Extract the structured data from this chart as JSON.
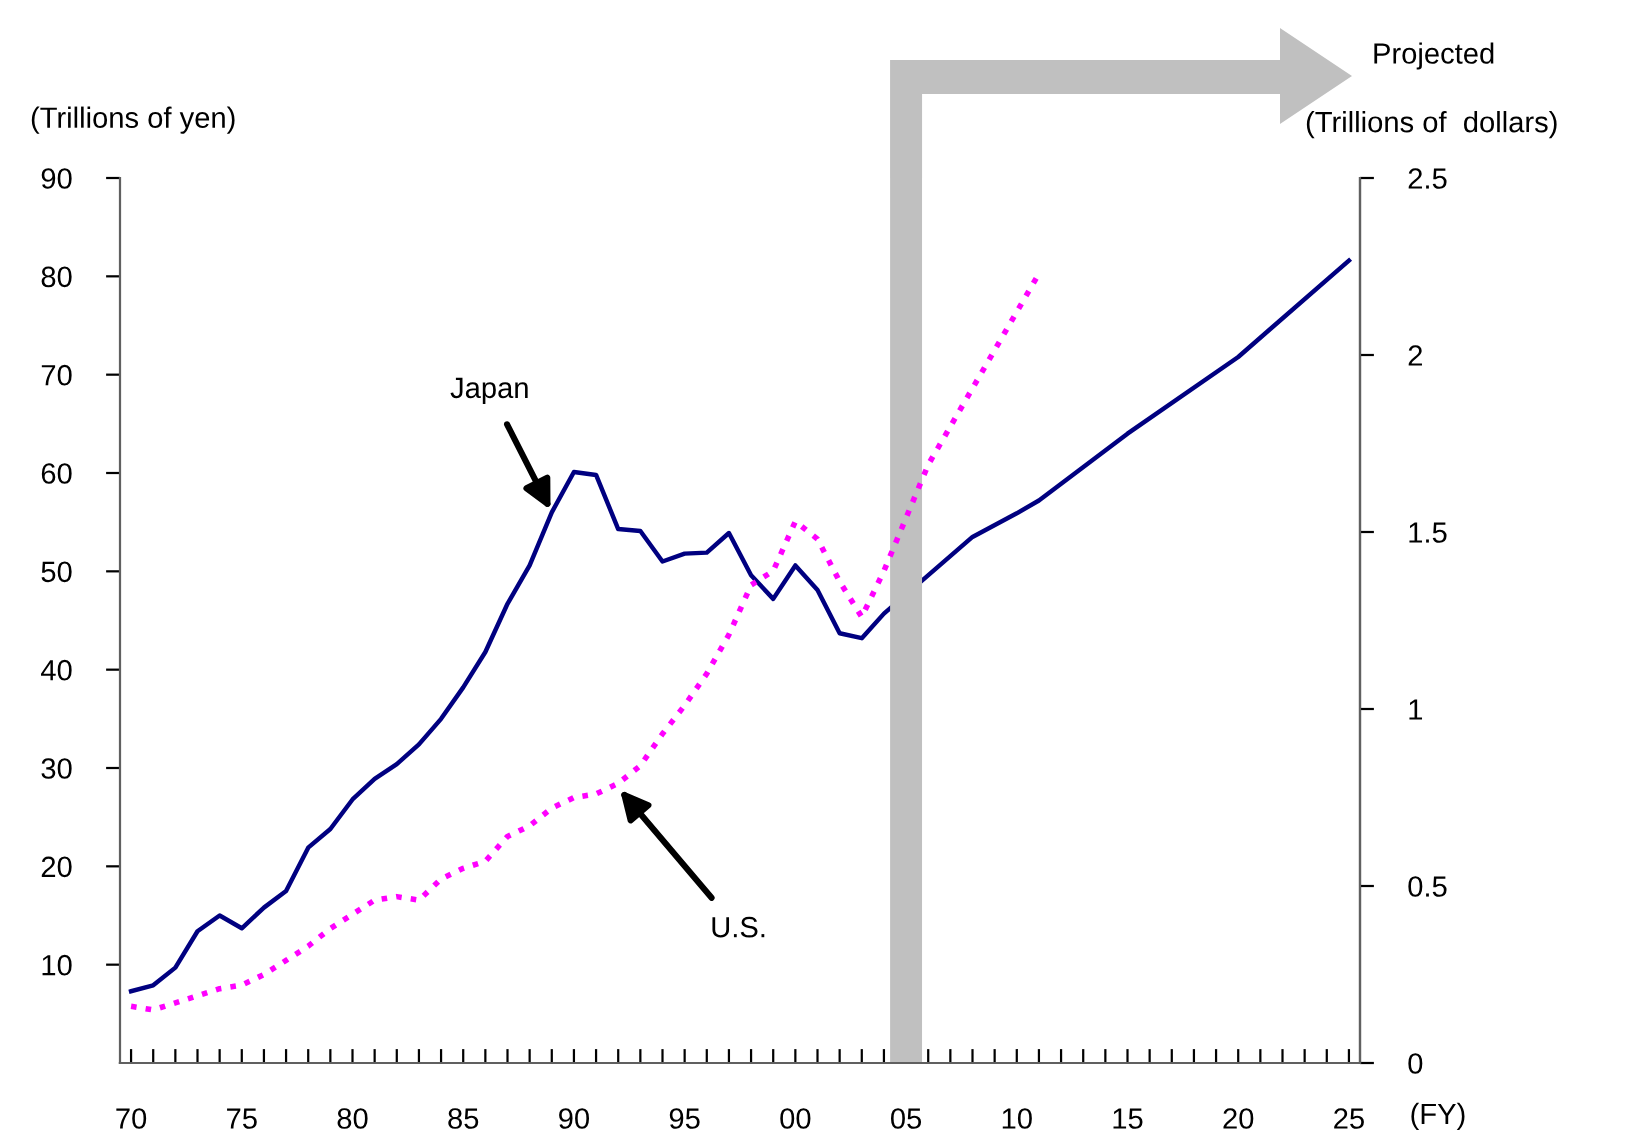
{
  "chart_data": {
    "type": "line",
    "ylabel": "(Trillions of yen)",
    "y2label": "(Trillions of  dollars)",
    "xlabel": "(FY)",
    "xlim": [
      1969.5,
      2025.5
    ],
    "xticks": [
      {
        "value": 1970,
        "label": "70"
      },
      {
        "value": 1975,
        "label": "75"
      },
      {
        "value": 1980,
        "label": "80"
      },
      {
        "value": 1985,
        "label": "85"
      },
      {
        "value": 1990,
        "label": "90"
      },
      {
        "value": 1995,
        "label": "95"
      },
      {
        "value": 2000,
        "label": "00"
      },
      {
        "value": 2005,
        "label": "05"
      },
      {
        "value": 2010,
        "label": "10"
      },
      {
        "value": 2015,
        "label": "15"
      },
      {
        "value": 2020,
        "label": "20"
      },
      {
        "value": 2025,
        "label": "25"
      },
      {
        "value": 1971,
        "label": null
      },
      {
        "value": 1972,
        "label": null
      },
      {
        "value": 1973,
        "label": null
      },
      {
        "value": 1974,
        "label": null
      },
      {
        "value": 1976,
        "label": null
      },
      {
        "value": 1977,
        "label": null
      },
      {
        "value": 1978,
        "label": null
      },
      {
        "value": 1979,
        "label": null
      },
      {
        "value": 1981,
        "label": null
      },
      {
        "value": 1982,
        "label": null
      },
      {
        "value": 1983,
        "label": null
      },
      {
        "value": 1984,
        "label": null
      },
      {
        "value": 1986,
        "label": null
      },
      {
        "value": 1987,
        "label": null
      },
      {
        "value": 1988,
        "label": null
      },
      {
        "value": 1989,
        "label": null
      },
      {
        "value": 1991,
        "label": null
      },
      {
        "value": 1992,
        "label": null
      },
      {
        "value": 1993,
        "label": null
      },
      {
        "value": 1994,
        "label": null
      },
      {
        "value": 1996,
        "label": null
      },
      {
        "value": 1997,
        "label": null
      },
      {
        "value": 1998,
        "label": null
      },
      {
        "value": 1999,
        "label": null
      },
      {
        "value": 2001,
        "label": null
      },
      {
        "value": 2002,
        "label": null
      },
      {
        "value": 2003,
        "label": null
      },
      {
        "value": 2004,
        "label": null
      },
      {
        "value": 2006,
        "label": null
      },
      {
        "value": 2007,
        "label": null
      },
      {
        "value": 2008,
        "label": null
      },
      {
        "value": 2009,
        "label": null
      },
      {
        "value": 2011,
        "label": null
      },
      {
        "value": 2012,
        "label": null
      },
      {
        "value": 2013,
        "label": null
      },
      {
        "value": 2014,
        "label": null
      },
      {
        "value": 2016,
        "label": null
      },
      {
        "value": 2017,
        "label": null
      },
      {
        "value": 2018,
        "label": null
      },
      {
        "value": 2019,
        "label": null
      },
      {
        "value": 2021,
        "label": null
      },
      {
        "value": 2022,
        "label": null
      },
      {
        "value": 2023,
        "label": null
      },
      {
        "value": 2024,
        "label": null
      }
    ],
    "ylim": [
      0,
      90
    ],
    "yticks": [
      10,
      20,
      30,
      40,
      50,
      60,
      70,
      80,
      90
    ],
    "y2lim": [
      0,
      2.5
    ],
    "y2ticks": [
      0,
      0.5,
      1,
      1.5,
      2,
      2.5
    ],
    "grid": false,
    "legend": false,
    "series": [
      {
        "color": "#000080",
        "line_style": "solid",
        "x": [
          1970,
          1971,
          1972,
          1973,
          1974,
          1975,
          1976,
          1977,
          1978,
          1979,
          1980,
          1981,
          1982,
          1983,
          1984,
          1985,
          1986,
          1987,
          1988,
          1989,
          1990,
          1991,
          1992,
          1993,
          1994,
          1995,
          1996,
          1997,
          1998,
          1999,
          2000,
          2001,
          2002,
          2003,
          2004,
          2008,
          2010,
          2011,
          2015,
          2020,
          2025
        ],
        "values": [
          7.3,
          7.9,
          9.7,
          13.4,
          15.0,
          13.7,
          15.8,
          17.5,
          21.9,
          23.8,
          26.8,
          28.9,
          30.4,
          32.4,
          35.0,
          38.2,
          41.8,
          46.7,
          50.6,
          56,
          60.1,
          59.8,
          54.3,
          54.1,
          51.0,
          51.8,
          51.9,
          53.9,
          49.6,
          47.2,
          50.6,
          48.1,
          43.7,
          43.2,
          45.7,
          53.5,
          55.9,
          57.2,
          64.0,
          71.8,
          81.6
        ]
      },
      {
        "color": "#ff00ff",
        "line_style": "dotted",
        "axis": "y2",
        "x": [
          1970,
          1971,
          1972,
          1973,
          1974,
          1975,
          1976,
          1977,
          1978,
          1979,
          1980,
          1981,
          1982,
          1983,
          1984,
          1985,
          1986,
          1987,
          1988,
          1989,
          1990,
          1991,
          1992,
          1993,
          1994,
          1995,
          1996,
          1997,
          1998,
          1999,
          2000,
          2001,
          2002,
          2003,
          2004,
          2006,
          2011
        ],
        "values": [
          0.16,
          0.15,
          0.17,
          0.19,
          0.21,
          0.22,
          0.25,
          0.29,
          0.33,
          0.38,
          0.42,
          0.46,
          0.47,
          0.46,
          0.52,
          0.55,
          0.57,
          0.64,
          0.67,
          0.72,
          0.75,
          0.76,
          0.79,
          0.84,
          0.93,
          1.01,
          1.1,
          1.21,
          1.35,
          1.39,
          1.53,
          1.48,
          1.36,
          1.26,
          1.39,
          1.69,
          2.23
        ]
      }
    ],
    "ref_lines": [
      {
        "axis": "x",
        "value": 2005,
        "color": "#c0c0c0"
      }
    ],
    "annotations": [
      {
        "text": "Japan",
        "x": 1989,
        "y": 56
      },
      {
        "text": "U.S.",
        "x": 1992,
        "y": 28
      },
      "Projected"
    ]
  }
}
